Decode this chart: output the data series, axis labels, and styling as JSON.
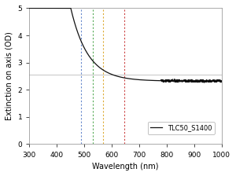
{
  "title": "",
  "xlabel": "Wavelength (nm)",
  "ylabel": "Extinction on axis (OD)",
  "xlim": [
    300,
    1000
  ],
  "ylim": [
    0,
    5
  ],
  "legend_label": "TLC50_S1400",
  "laser_wavelengths": [
    488,
    532,
    568,
    647
  ],
  "laser_colors": [
    "#6688cc",
    "#55aa55",
    "#ddaa33",
    "#cc4444"
  ],
  "curve_color": "#111111",
  "background_color": "#ffffff",
  "yticks": [
    0,
    1,
    2,
    3,
    4,
    5
  ],
  "xticks": [
    300,
    400,
    500,
    600,
    700,
    800,
    900,
    1000
  ],
  "hline_y": 2.55,
  "hline_color": "#bbbbbb",
  "curve_baseline": 2.32,
  "curve_amplitude": 30.0,
  "curve_decay": 0.016
}
